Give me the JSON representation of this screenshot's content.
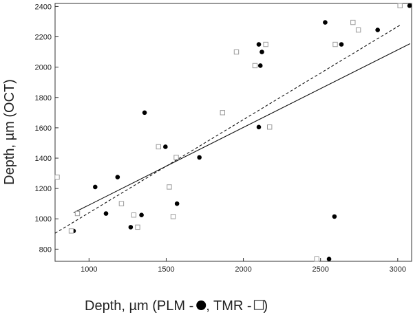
{
  "chart_data": {
    "type": "scatter",
    "title": "",
    "xlabel_parts": [
      "Depth, µm (PLM - ",
      ",  TMR - ",
      " )"
    ],
    "ylabel": "Depth, µm (OCT)",
    "xlim": [
      780,
      3090
    ],
    "ylim": [
      720,
      2420
    ],
    "x_ticks": [
      1000,
      1500,
      2000,
      2500,
      3000
    ],
    "y_ticks": [
      800,
      1000,
      1200,
      1400,
      1600,
      1800,
      2000,
      2200,
      2400
    ],
    "grid": false,
    "legend": "inline in x-axis label",
    "series": [
      {
        "marker": "filled-circle",
        "color": "#000000",
        "points": [
          [
            900,
            920
          ],
          [
            1040,
            1210
          ],
          [
            1110,
            1035
          ],
          [
            1185,
            1275
          ],
          [
            1270,
            945
          ],
          [
            1340,
            1025
          ],
          [
            1360,
            1700
          ],
          [
            1495,
            1475
          ],
          [
            1570,
            1100
          ],
          [
            1715,
            1405
          ],
          [
            2100,
            1605
          ],
          [
            2100,
            2150
          ],
          [
            2110,
            2010
          ],
          [
            2120,
            2100
          ],
          [
            2530,
            2295
          ],
          [
            2555,
            735
          ],
          [
            2590,
            1015
          ],
          [
            2635,
            2150
          ],
          [
            2870,
            2245
          ],
          [
            3080,
            2405
          ]
        ]
      },
      {
        "marker": "open-square",
        "color": "#999999",
        "points": [
          [
            780,
            1275
          ],
          [
            885,
            920
          ],
          [
            925,
            1035
          ],
          [
            1210,
            1100
          ],
          [
            1290,
            1025
          ],
          [
            1315,
            945
          ],
          [
            1450,
            1475
          ],
          [
            1520,
            1210
          ],
          [
            1545,
            1015
          ],
          [
            1565,
            1405
          ],
          [
            1865,
            1700
          ],
          [
            1955,
            2100
          ],
          [
            2075,
            2010
          ],
          [
            2145,
            2150
          ],
          [
            2170,
            1605
          ],
          [
            2475,
            735
          ],
          [
            2595,
            2150
          ],
          [
            2710,
            2295
          ],
          [
            2745,
            2245
          ],
          [
            3015,
            2405
          ]
        ]
      }
    ],
    "fit_lines": [
      {
        "style": "solid",
        "x": [
          900,
          3080
        ],
        "y": [
          1040,
          2155
        ]
      },
      {
        "style": "dashed",
        "x": [
          780,
          3020
        ],
        "y": [
          905,
          2280
        ]
      }
    ]
  }
}
